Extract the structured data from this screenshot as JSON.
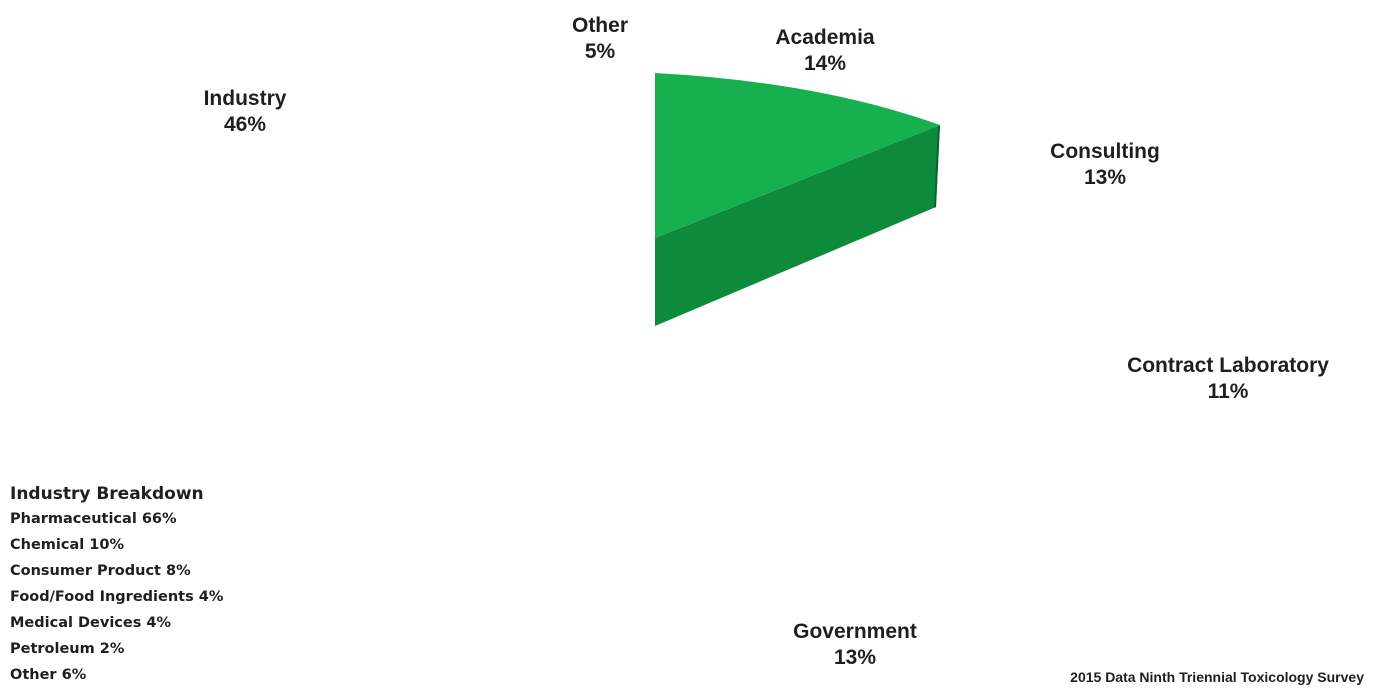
{
  "chart_data": {
    "type": "pie",
    "title": "",
    "slices": [
      {
        "label": "Academia",
        "value": 14,
        "display": "14%"
      },
      {
        "label": "Consulting",
        "value": 13,
        "display": "13%"
      },
      {
        "label": "Contract Laboratory",
        "value": 11,
        "display": "11%"
      },
      {
        "label": "Government",
        "value": 13,
        "display": "13%"
      },
      {
        "label": "Industry",
        "value": 46,
        "display": "46%"
      },
      {
        "label": "Other",
        "value": 5,
        "display": "5%"
      }
    ],
    "visible_slice": "Academia",
    "colors": {
      "top": "#16b04e",
      "side": "#0e8a3c",
      "side_dark": "#096430"
    }
  },
  "breakdown": {
    "title": "Industry Breakdown",
    "items": [
      "Pharmaceutical  66%",
      "Chemical  10%",
      "Consumer Product  8%",
      "Food/Food Ingredients  4%",
      "Medical Devices  4%",
      "Petroleum  2%",
      "Other  6%"
    ]
  },
  "source": "2015 Data Ninth Triennial Toxicology Survey"
}
